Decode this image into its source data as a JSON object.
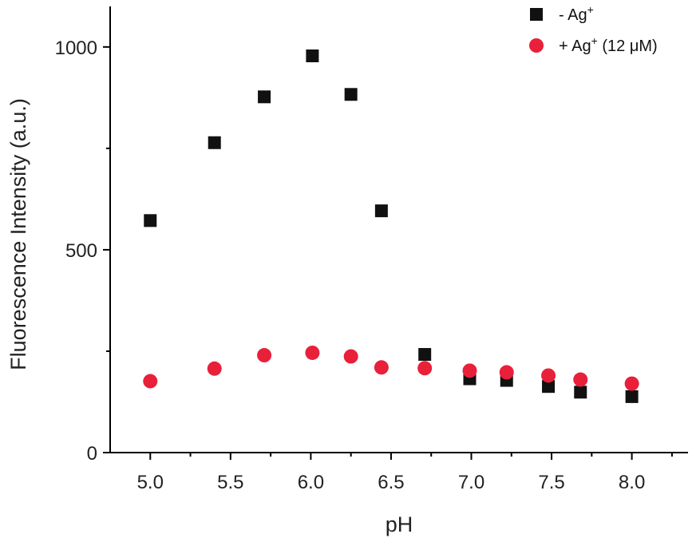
{
  "chart_data": {
    "type": "scatter",
    "xlabel": "pH",
    "ylabel": "Fluorescence Intensity (a.u.)",
    "xlim": [
      4.75,
      8.35
    ],
    "ylim": [
      0,
      1100
    ],
    "xticks": [
      5.0,
      5.5,
      6.0,
      6.5,
      7.0,
      7.5,
      8.0
    ],
    "xtick_labels": [
      "5.0",
      "5.5",
      "6.0",
      "6.5",
      "7.0",
      "7.5",
      "8.0"
    ],
    "yticks": [
      0,
      500,
      1000
    ],
    "ytick_labels": [
      "0",
      "500",
      "1000"
    ],
    "grid": false,
    "legend_position": "top-right",
    "series": [
      {
        "name": "- Ag+",
        "label_main": "- Ag",
        "label_sup": "+",
        "marker": "square",
        "color": "#111111",
        "x": [
          5.0,
          5.4,
          5.71,
          6.01,
          6.25,
          6.44,
          6.71,
          6.99,
          7.22,
          7.48,
          7.68,
          8.0
        ],
        "y": [
          572,
          764,
          877,
          978,
          883,
          596,
          242,
          182,
          178,
          163,
          149,
          138
        ]
      },
      {
        "name": "+ Ag+ (12 μM)",
        "label_main": "+ Ag",
        "label_sup": "+",
        "label_tail": " (12 μM)",
        "marker": "circle",
        "color": "#e8203a",
        "x": [
          5.0,
          5.4,
          5.71,
          6.01,
          6.25,
          6.44,
          6.71,
          6.99,
          7.22,
          7.48,
          7.68,
          8.0
        ],
        "y": [
          176,
          207,
          240,
          246,
          237,
          210,
          208,
          202,
          198,
          190,
          180,
          170
        ]
      }
    ]
  }
}
